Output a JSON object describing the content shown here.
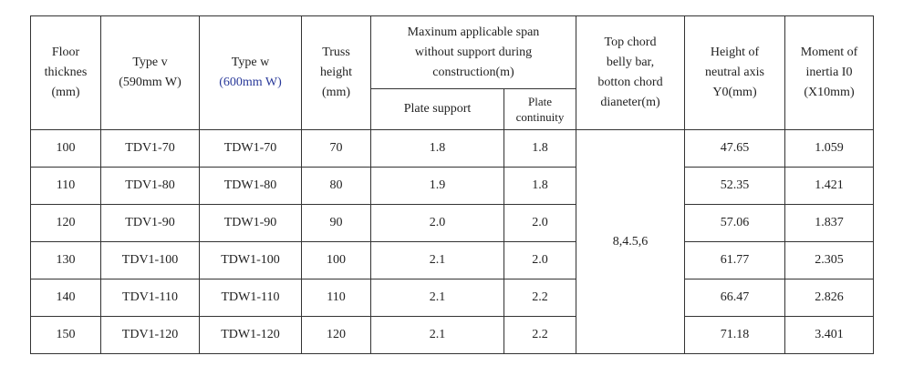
{
  "table": {
    "header": {
      "top": [
        [
          "Floor",
          "thicknes",
          "(mm)"
        ],
        [
          "Type v",
          "(590mm  W)"
        ],
        [
          "Type w",
          "(600mm W)"
        ],
        [
          "Truss",
          "height",
          "(mm)"
        ],
        [
          "Maxinum applicable span",
          "without support during",
          "construction(m)"
        ],
        [
          "Top chord",
          "belly bar,",
          "botton chord",
          "dianeter(m)"
        ],
        [
          "Height of",
          "neutral axis",
          "Y0(mm)"
        ],
        [
          "Moment of",
          "inertia I0",
          "(X10mm)"
        ]
      ],
      "sub": [
        [
          "Plate support"
        ],
        [
          "Plate",
          "continuity"
        ]
      ]
    },
    "merged_cell": "8,4.5,6",
    "rows": [
      [
        "100",
        "TDV1-70",
        "TDW1-70",
        "70",
        "1.8",
        "1.8",
        "47.65",
        "1.059"
      ],
      [
        "110",
        "TDV1-80",
        "TDW1-80",
        "80",
        "1.9",
        "1.8",
        "52.35",
        "1.421"
      ],
      [
        "120",
        "TDV1-90",
        "TDW1-90",
        "90",
        "2.0",
        "2.0",
        "57.06",
        "1.837"
      ],
      [
        "130",
        "TDV1-100",
        "TDW1-100",
        "100",
        "2.1",
        "2.0",
        "61.77",
        "2.305"
      ],
      [
        "140",
        "TDV1-110",
        "TDW1-110",
        "110",
        "2.1",
        "2.2",
        "66.47",
        "2.826"
      ],
      [
        "150",
        "TDV1-120",
        "TDW1-120",
        "120",
        "2.1",
        "2.2",
        "71.18",
        "3.401"
      ]
    ]
  }
}
